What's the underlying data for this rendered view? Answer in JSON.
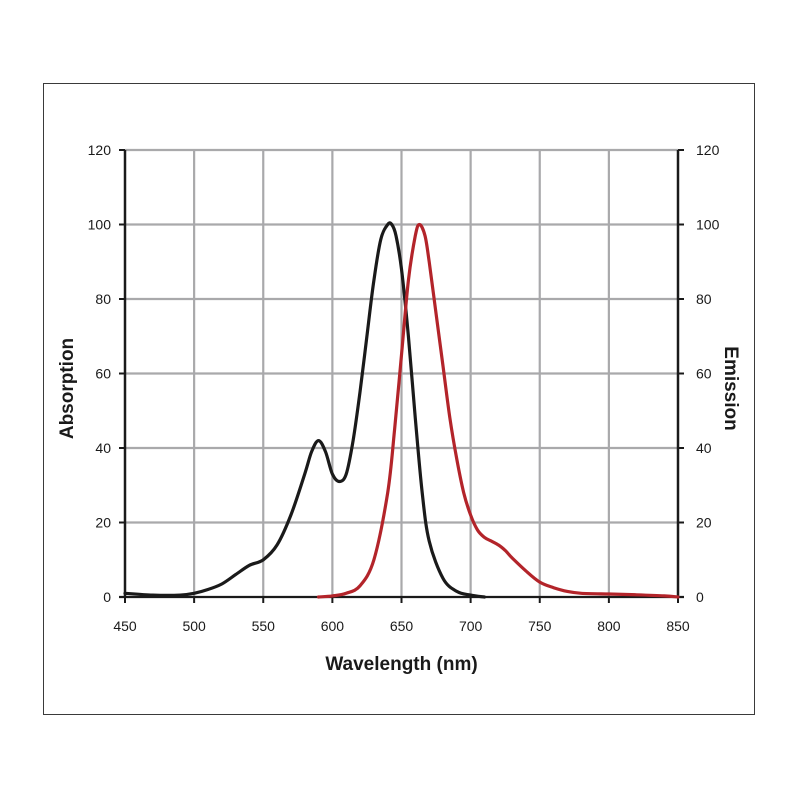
{
  "chart_data": {
    "type": "line",
    "title": "",
    "xlabel": "Wavelength (nm)",
    "ylabel_left": "Absorption",
    "ylabel_right": "Emission",
    "xlim": [
      450,
      850
    ],
    "ylim": [
      0,
      120
    ],
    "x_ticks": [
      450,
      500,
      550,
      600,
      650,
      700,
      750,
      800,
      850
    ],
    "y_ticks": [
      0,
      20,
      40,
      60,
      80,
      100,
      120
    ],
    "grid": true,
    "legend": "none",
    "series": [
      {
        "color": "#1a1a1a",
        "axis": "left",
        "x": [
          450,
          470,
          490,
          500,
          510,
          520,
          530,
          540,
          550,
          560,
          570,
          580,
          585,
          590,
          595,
          600,
          605,
          610,
          615,
          620,
          625,
          630,
          635,
          640,
          643,
          646,
          650,
          655,
          660,
          665,
          670,
          680,
          690,
          700,
          710
        ],
        "y": [
          1,
          0.5,
          0.5,
          1,
          2,
          3.5,
          6,
          8.5,
          10,
          14,
          22,
          33,
          39,
          42,
          39,
          33,
          31,
          33,
          42,
          55,
          70,
          85,
          96,
          100,
          100,
          97,
          88,
          70,
          48,
          28,
          15,
          5,
          1.5,
          0.5,
          0
        ]
      },
      {
        "color": "#b3242a",
        "axis": "right",
        "x": [
          590,
          600,
          610,
          620,
          630,
          640,
          645,
          650,
          655,
          660,
          663,
          667,
          670,
          675,
          680,
          685,
          690,
          695,
          700,
          705,
          710,
          715,
          720,
          725,
          730,
          740,
          750,
          760,
          770,
          780,
          800,
          820,
          840,
          850
        ],
        "y": [
          0,
          0.3,
          1,
          3,
          10,
          28,
          45,
          65,
          85,
          97,
          100,
          97,
          90,
          76,
          62,
          48,
          37,
          28,
          22,
          18,
          16,
          15,
          14,
          12.5,
          10.5,
          7,
          4,
          2.5,
          1.5,
          1,
          0.8,
          0.6,
          0.3,
          0
        ]
      }
    ]
  }
}
